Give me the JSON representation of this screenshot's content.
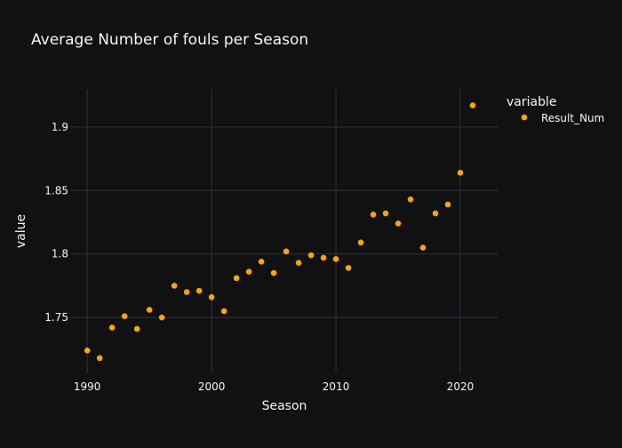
{
  "chart_data": {
    "type": "scatter",
    "title": "Average Number of fouls per Season",
    "xlabel": "Season",
    "ylabel": "value",
    "xlim": [
      1988.7,
      2023.0
    ],
    "ylim": [
      1.706,
      1.93
    ],
    "xticks": [
      1990,
      2000,
      2010,
      2020
    ],
    "xtick_labels": [
      "1990",
      "2000",
      "2010",
      "2020"
    ],
    "yticks": [
      1.75,
      1.8,
      1.85,
      1.9
    ],
    "ytick_labels": [
      "1.75",
      "1.8",
      "1.85",
      "1.9"
    ],
    "grid": true,
    "legend": {
      "title": "variable",
      "position": "right"
    },
    "series": [
      {
        "name": "Result_Num",
        "color": "#FFA500",
        "x": [
          1990,
          1991,
          1992,
          1993,
          1994,
          1995,
          1996,
          1997,
          1998,
          1999,
          2000,
          2001,
          2002,
          2003,
          2004,
          2005,
          2006,
          2007,
          2008,
          2009,
          2010,
          2011,
          2012,
          2013,
          2014,
          2015,
          2016,
          2017,
          2018,
          2019,
          2020,
          2021
        ],
        "y": [
          1.724,
          1.718,
          1.742,
          1.751,
          1.741,
          1.756,
          1.75,
          1.775,
          1.77,
          1.771,
          1.766,
          1.755,
          1.781,
          1.786,
          1.794,
          1.785,
          1.802,
          1.793,
          1.799,
          1.797,
          1.796,
          1.789,
          1.809,
          1.831,
          1.832,
          1.824,
          1.843,
          1.805,
          1.832,
          1.839,
          1.864,
          1.917
        ]
      }
    ]
  }
}
